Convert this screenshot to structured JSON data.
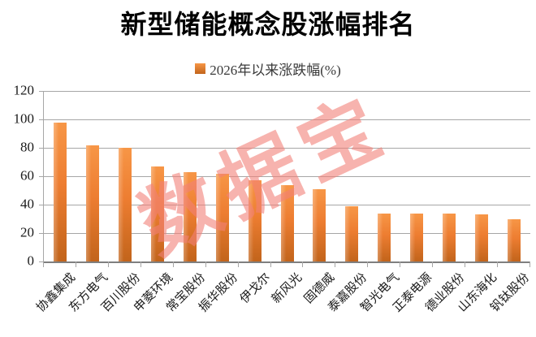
{
  "title": "新型储能概念股涨幅排名",
  "legend": {
    "label": "2026年以来涨跌幅(%)"
  },
  "watermark": {
    "text": "数据宝",
    "color": "rgba(242,128,120,0.6)"
  },
  "colors": {
    "bar_top": "#F79646",
    "bar_bottom": "#C2641B",
    "legend_swatch": "#ED7D31",
    "gridline": "#A6A6A6",
    "axis": "#7F7F7F",
    "text": "#1A1A1A"
  },
  "chart_data": {
    "type": "bar",
    "title": "新型储能概念股涨幅排名",
    "series_name": "2026年以来涨跌幅(%)",
    "categories": [
      "协鑫集成",
      "东方电气",
      "百川股份",
      "申菱环境",
      "常宝股份",
      "振华股份",
      "伊戈尔",
      "新风光",
      "固德威",
      "泰嘉股份",
      "智光电气",
      "正泰电源",
      "德业股份",
      "山东海化",
      "钒钛股份"
    ],
    "values": [
      98,
      82,
      80,
      67,
      63,
      62,
      57,
      54,
      51,
      39,
      34,
      34,
      34,
      33,
      30
    ],
    "xlabel": "",
    "ylabel": "",
    "ylim": [
      0,
      120
    ],
    "yticks": [
      0,
      20,
      40,
      60,
      80,
      100,
      120
    ],
    "grid": true,
    "legend_position": "top",
    "x_label_rotation": -45,
    "watermark_text": "数据宝"
  }
}
